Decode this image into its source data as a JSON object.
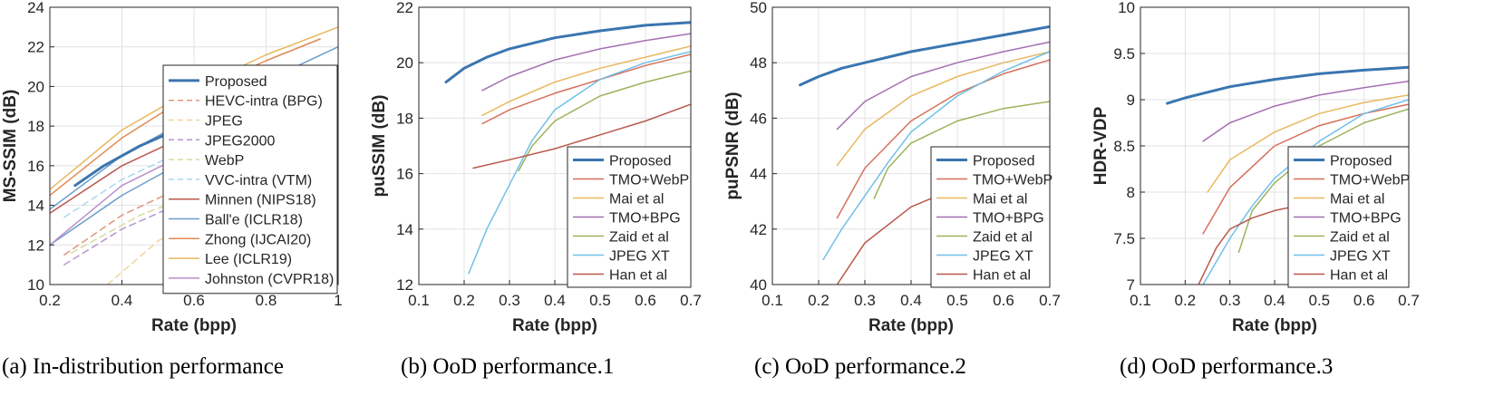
{
  "colors": {
    "proposed": "#3a75b0",
    "red": "#d6705c",
    "yellow": "#e8b85e",
    "purple": "#a46fb3",
    "green": "#9bb35c",
    "cyan": "#70c0e8",
    "darkred": "#b8584c",
    "blue2": "#6a9ec9",
    "orange": "#e08a55",
    "lavender": "#b890cc",
    "dashred": "#e0957f",
    "dashpurple": "#b796cc",
    "dashgreen": "#d4dba0",
    "dashcyan": "#a9d8ef",
    "dashyellow": "#f0d59a"
  },
  "chart_data": [
    {
      "type": "line",
      "caption": "(a)  In-distribution performance",
      "xlabel": "Rate (bpp)",
      "ylabel": "MS-SSIM (dB)",
      "xlim": [
        0.2,
        1.0
      ],
      "ylim": [
        10,
        24
      ],
      "xticks": [
        0.2,
        0.4,
        0.6,
        0.8,
        1.0
      ],
      "xticklabels": [
        "0.2",
        "0.4",
        "0.6",
        "0.8",
        "1"
      ],
      "yticks": [
        10,
        12,
        14,
        16,
        18,
        20,
        22,
        24
      ],
      "yticklabels": [
        "10",
        "12",
        "14",
        "16",
        "18",
        "20",
        "22",
        "24"
      ],
      "grid": true,
      "legend_position": "right",
      "series": [
        {
          "name": "Proposed",
          "color": "proposed",
          "width": 3,
          "dash": false,
          "x": [
            0.27,
            0.35,
            0.45,
            0.55,
            0.62
          ],
          "y": [
            15.0,
            16.0,
            17.0,
            17.8,
            18.2
          ]
        },
        {
          "name": "HEVC-intra (BPG)",
          "color": "dashred",
          "width": 1.5,
          "dash": true,
          "x": [
            0.24,
            0.4,
            0.6,
            0.8,
            1.0
          ],
          "y": [
            11.5,
            13.5,
            15.2,
            16.5,
            17.6
          ]
        },
        {
          "name": "JPEG",
          "color": "dashyellow",
          "width": 1.5,
          "dash": true,
          "x": [
            0.36,
            0.5,
            0.7,
            0.85,
            1.0
          ],
          "y": [
            10.0,
            12.2,
            14.2,
            15.3,
            16.2
          ]
        },
        {
          "name": "JPEG2000",
          "color": "dashpurple",
          "width": 1.5,
          "dash": true,
          "x": [
            0.24,
            0.4,
            0.6,
            0.8,
            1.0
          ],
          "y": [
            11.0,
            12.8,
            14.4,
            15.6,
            16.5
          ]
        },
        {
          "name": "WebP",
          "color": "dashgreen",
          "width": 1.5,
          "dash": true,
          "x": [
            0.26,
            0.45,
            0.65,
            0.85,
            1.0
          ],
          "y": [
            11.6,
            13.5,
            14.9,
            16.0,
            16.8
          ]
        },
        {
          "name": "VVC-intra (VTM)",
          "color": "dashcyan",
          "width": 1.5,
          "dash": true,
          "x": [
            0.24,
            0.4,
            0.6,
            0.8,
            1.0
          ],
          "y": [
            13.4,
            15.3,
            17.0,
            18.3,
            19.2
          ]
        },
        {
          "name": "Minnen (NIPS18)",
          "color": "darkred",
          "width": 1.5,
          "dash": false,
          "x": [
            0.2,
            0.4,
            0.6,
            0.8,
            1.0
          ],
          "y": [
            13.6,
            16.0,
            17.7,
            18.9,
            19.7
          ]
        },
        {
          "name": "Ball'e (ICLR18)",
          "color": "blue2",
          "width": 1.5,
          "dash": false,
          "x": [
            0.2,
            0.4,
            0.6,
            0.8,
            1.0
          ],
          "y": [
            12.0,
            14.5,
            16.5,
            18.2,
            20.0
          ]
        },
        {
          "name": "Zhong (IJCAI20)",
          "color": "orange",
          "width": 1.5,
          "dash": false,
          "x": [
            0.2,
            0.4,
            0.6,
            0.8,
            0.95
          ],
          "y": [
            14.5,
            17.4,
            19.7,
            21.3,
            22.4
          ]
        },
        {
          "name": "Lee (ICLR19)",
          "color": "yellow",
          "width": 1.5,
          "dash": false,
          "x": [
            0.2,
            0.4,
            0.6,
            0.8,
            1.0
          ],
          "y": [
            14.8,
            17.8,
            19.9,
            21.6,
            23.0
          ]
        },
        {
          "name": "Johnston (CVPR18)",
          "color": "lavender",
          "width": 1.5,
          "dash": false,
          "x": [
            0.2,
            0.4,
            0.6,
            0.8,
            1.0
          ],
          "y": [
            12.0,
            15.0,
            16.8,
            18.2,
            19.2
          ]
        },
        {
          "name": "",
          "color": "blue2",
          "width": 1.5,
          "dash": false,
          "x": [
            0.2,
            0.4,
            0.6,
            0.8,
            1.0
          ],
          "y": [
            13.8,
            16.5,
            18.5,
            20.3,
            22.0
          ]
        }
      ]
    },
    {
      "type": "line",
      "caption": "(b)  OoD performance.1",
      "xlabel": "Rate (bpp)",
      "ylabel": "puSSIM (dB)",
      "xlim": [
        0.1,
        0.7
      ],
      "ylim": [
        12,
        22
      ],
      "xticks": [
        0.1,
        0.2,
        0.3,
        0.4,
        0.5,
        0.6,
        0.7
      ],
      "xticklabels": [
        "0.1",
        "0.2",
        "0.3",
        "0.4",
        "0.5",
        "0.6",
        "0.7"
      ],
      "yticks": [
        12,
        14,
        16,
        18,
        20,
        22
      ],
      "yticklabels": [
        "12",
        "14",
        "16",
        "18",
        "20",
        "22"
      ],
      "grid": true,
      "legend_position": "bottom-right",
      "series": [
        {
          "name": "Proposed",
          "color": "proposed",
          "width": 3,
          "dash": false,
          "x": [
            0.16,
            0.2,
            0.25,
            0.3,
            0.4,
            0.5,
            0.6,
            0.7
          ],
          "y": [
            19.3,
            19.8,
            20.2,
            20.5,
            20.9,
            21.15,
            21.35,
            21.45
          ]
        },
        {
          "name": "TMO+WebP",
          "color": "red",
          "width": 1.5,
          "dash": false,
          "x": [
            0.24,
            0.3,
            0.4,
            0.5,
            0.6,
            0.7
          ],
          "y": [
            17.8,
            18.3,
            18.9,
            19.4,
            19.9,
            20.3
          ]
        },
        {
          "name": "Mai et al",
          "color": "yellow",
          "width": 1.5,
          "dash": false,
          "x": [
            0.24,
            0.3,
            0.4,
            0.5,
            0.6,
            0.7
          ],
          "y": [
            18.1,
            18.6,
            19.3,
            19.8,
            20.2,
            20.6
          ]
        },
        {
          "name": "TMO+BPG",
          "color": "purple",
          "width": 1.5,
          "dash": false,
          "x": [
            0.24,
            0.3,
            0.4,
            0.5,
            0.6,
            0.7
          ],
          "y": [
            19.0,
            19.5,
            20.1,
            20.5,
            20.8,
            21.05
          ]
        },
        {
          "name": "Zaid et al",
          "color": "green",
          "width": 1.5,
          "dash": false,
          "x": [
            0.32,
            0.35,
            0.4,
            0.5,
            0.6,
            0.7
          ],
          "y": [
            16.1,
            17.0,
            17.9,
            18.8,
            19.3,
            19.7
          ]
        },
        {
          "name": "JPEG XT",
          "color": "cyan",
          "width": 1.5,
          "dash": false,
          "x": [
            0.21,
            0.25,
            0.3,
            0.35,
            0.4,
            0.5,
            0.6,
            0.7
          ],
          "y": [
            12.4,
            14.0,
            15.6,
            17.2,
            18.3,
            19.4,
            20.0,
            20.4
          ]
        },
        {
          "name": "Han et al",
          "color": "darkred",
          "width": 1.5,
          "dash": false,
          "x": [
            0.22,
            0.3,
            0.4,
            0.5,
            0.6,
            0.7
          ],
          "y": [
            16.2,
            16.5,
            16.9,
            17.4,
            17.9,
            18.5
          ]
        }
      ]
    },
    {
      "type": "line",
      "caption": "(c)  OoD performance.2",
      "xlabel": "Rate (bpp)",
      "ylabel": "puPSNR (dB)",
      "xlim": [
        0.1,
        0.7
      ],
      "ylim": [
        40,
        50
      ],
      "xticks": [
        0.1,
        0.2,
        0.3,
        0.4,
        0.5,
        0.6,
        0.7
      ],
      "xticklabels": [
        "0.1",
        "0.2",
        "0.3",
        "0.4",
        "0.5",
        "0.6",
        "0.7"
      ],
      "yticks": [
        40,
        42,
        44,
        46,
        48,
        50
      ],
      "yticklabels": [
        "40",
        "42",
        "44",
        "46",
        "48",
        "50"
      ],
      "grid": true,
      "legend_position": "bottom-right",
      "series": [
        {
          "name": "Proposed",
          "color": "proposed",
          "width": 3,
          "dash": false,
          "x": [
            0.16,
            0.2,
            0.25,
            0.3,
            0.4,
            0.5,
            0.6,
            0.7
          ],
          "y": [
            47.2,
            47.5,
            47.8,
            48.0,
            48.4,
            48.7,
            49.0,
            49.3
          ]
        },
        {
          "name": "TMO+WebP",
          "color": "red",
          "width": 1.5,
          "dash": false,
          "x": [
            0.24,
            0.3,
            0.4,
            0.5,
            0.6,
            0.7
          ],
          "y": [
            42.4,
            44.2,
            45.9,
            46.9,
            47.6,
            48.1
          ]
        },
        {
          "name": "Mai et al",
          "color": "yellow",
          "width": 1.5,
          "dash": false,
          "x": [
            0.24,
            0.3,
            0.4,
            0.5,
            0.6,
            0.7
          ],
          "y": [
            44.3,
            45.6,
            46.8,
            47.5,
            48.0,
            48.4
          ]
        },
        {
          "name": "TMO+BPG",
          "color": "purple",
          "width": 1.5,
          "dash": false,
          "x": [
            0.24,
            0.3,
            0.4,
            0.5,
            0.6,
            0.7
          ],
          "y": [
            45.6,
            46.6,
            47.5,
            48.0,
            48.4,
            48.75
          ]
        },
        {
          "name": "Zaid et al",
          "color": "green",
          "width": 1.5,
          "dash": false,
          "x": [
            0.32,
            0.35,
            0.4,
            0.5,
            0.6,
            0.7
          ],
          "y": [
            43.1,
            44.2,
            45.1,
            45.9,
            46.35,
            46.6
          ]
        },
        {
          "name": "JPEG XT",
          "color": "cyan",
          "width": 1.5,
          "dash": false,
          "x": [
            0.21,
            0.25,
            0.3,
            0.35,
            0.4,
            0.5,
            0.6,
            0.7
          ],
          "y": [
            40.9,
            42.0,
            43.2,
            44.4,
            45.5,
            46.8,
            47.7,
            48.4
          ]
        },
        {
          "name": "Han et al",
          "color": "darkred",
          "width": 1.5,
          "dash": false,
          "x": [
            0.24,
            0.3,
            0.4,
            0.5,
            0.6,
            0.7
          ],
          "y": [
            40.0,
            41.5,
            42.8,
            43.5,
            43.9,
            44.1
          ]
        }
      ]
    },
    {
      "type": "line",
      "caption": "(d)  OoD performance.3",
      "xlabel": "Rate (bpp)",
      "ylabel": "HDR-VDP",
      "xlim": [
        0.1,
        0.7
      ],
      "ylim": [
        7,
        10
      ],
      "xticks": [
        0.1,
        0.2,
        0.3,
        0.4,
        0.5,
        0.6,
        0.7
      ],
      "xticklabels": [
        "0.1",
        "0.2",
        "0.3",
        "0.4",
        "0.5",
        "0.6",
        "0.7"
      ],
      "yticks": [
        7,
        7.5,
        8,
        8.5,
        9,
        9.5,
        10
      ],
      "yticklabels": [
        "7",
        "7.5",
        "8",
        "8.5",
        "9",
        "9.5",
        "10"
      ],
      "grid": true,
      "legend_position": "bottom-right",
      "series": [
        {
          "name": "Proposed",
          "color": "proposed",
          "width": 3,
          "dash": false,
          "x": [
            0.16,
            0.2,
            0.25,
            0.3,
            0.4,
            0.5,
            0.6,
            0.7
          ],
          "y": [
            8.96,
            9.02,
            9.08,
            9.14,
            9.22,
            9.28,
            9.32,
            9.35
          ]
        },
        {
          "name": "TMO+WebP",
          "color": "red",
          "width": 1.5,
          "dash": false,
          "x": [
            0.24,
            0.3,
            0.4,
            0.5,
            0.6,
            0.7
          ],
          "y": [
            7.55,
            8.05,
            8.5,
            8.72,
            8.85,
            8.95
          ]
        },
        {
          "name": "Mai et al",
          "color": "yellow",
          "width": 1.5,
          "dash": false,
          "x": [
            0.25,
            0.3,
            0.4,
            0.5,
            0.6,
            0.7
          ],
          "y": [
            8.0,
            8.35,
            8.65,
            8.85,
            8.97,
            9.05
          ]
        },
        {
          "name": "TMO+BPG",
          "color": "purple",
          "width": 1.5,
          "dash": false,
          "x": [
            0.24,
            0.3,
            0.4,
            0.5,
            0.6,
            0.7
          ],
          "y": [
            8.55,
            8.75,
            8.93,
            9.05,
            9.13,
            9.2
          ]
        },
        {
          "name": "Zaid et al",
          "color": "green",
          "width": 1.5,
          "dash": false,
          "x": [
            0.32,
            0.35,
            0.4,
            0.5,
            0.6,
            0.7
          ],
          "y": [
            7.35,
            7.8,
            8.1,
            8.5,
            8.75,
            8.9
          ]
        },
        {
          "name": "JPEG XT",
          "color": "cyan",
          "width": 1.5,
          "dash": false,
          "x": [
            0.24,
            0.3,
            0.35,
            0.4,
            0.5,
            0.6,
            0.7
          ],
          "y": [
            7.0,
            7.5,
            7.85,
            8.15,
            8.55,
            8.85,
            9.0
          ]
        },
        {
          "name": "Han et al",
          "color": "darkred",
          "width": 1.5,
          "dash": false,
          "x": [
            0.23,
            0.27,
            0.3,
            0.35,
            0.4,
            0.5,
            0.6,
            0.7
          ],
          "y": [
            7.0,
            7.4,
            7.6,
            7.72,
            7.8,
            7.9,
            7.96,
            8.02
          ]
        }
      ]
    }
  ]
}
